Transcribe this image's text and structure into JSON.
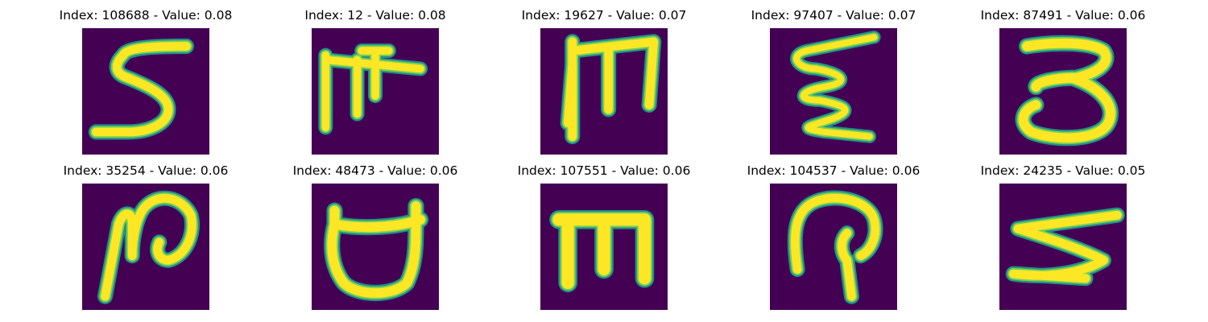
{
  "figure": {
    "panels": [
      {
        "title": "Index: 108688 - Value: 0.08",
        "glyph": "S-shape"
      },
      {
        "title": "Index: 12 - Value: 0.08",
        "glyph": "comb-shape"
      },
      {
        "title": "Index: 19627 - Value: 0.07",
        "glyph": "M-shape"
      },
      {
        "title": "Index: 97407 - Value: 0.07",
        "glyph": "zigzag-shape"
      },
      {
        "title": "Index: 87491 - Value: 0.06",
        "glyph": "3-shape"
      },
      {
        "title": "Index: 35254 - Value: 0.06",
        "glyph": "N-loop-shape"
      },
      {
        "title": "Index: 48473 - Value: 0.06",
        "glyph": "cup-shape"
      },
      {
        "title": "Index: 107551 - Value: 0.06",
        "glyph": "E-up-shape"
      },
      {
        "title": "Index: 104537 - Value: 0.06",
        "glyph": "hook-shape"
      },
      {
        "title": "Index: 24235 - Value: 0.05",
        "glyph": "rotated-S-shape"
      }
    ],
    "colors": {
      "background": "#440154",
      "edge": "#21918c",
      "mid": "#7ad151",
      "stroke": "#fde725"
    }
  }
}
